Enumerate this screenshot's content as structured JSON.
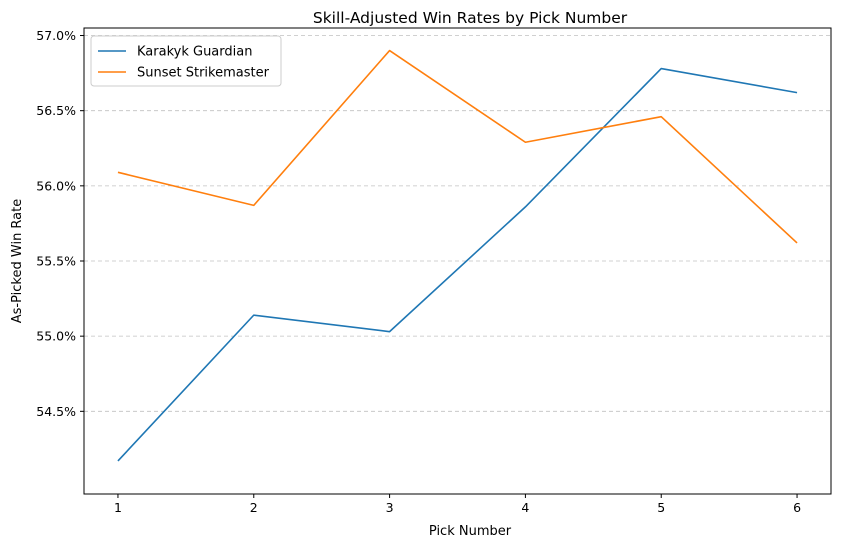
{
  "chart_data": {
    "type": "line",
    "title": "Skill-Adjusted Win Rates by Pick Number",
    "xlabel": "Pick Number",
    "ylabel": "As-Picked Win Rate",
    "x": [
      1,
      2,
      3,
      4,
      5,
      6
    ],
    "x_ticks": [
      "1",
      "2",
      "3",
      "4",
      "5",
      "6"
    ],
    "y_ticks": [
      "54.5%",
      "55.0%",
      "55.5%",
      "56.0%",
      "56.5%",
      "57.0%"
    ],
    "y_tick_values": [
      54.5,
      55.0,
      55.5,
      56.0,
      56.5,
      57.0
    ],
    "ylim": [
      53.95,
      57.05
    ],
    "xlim": [
      0.75,
      6.25
    ],
    "grid": "y-dashed",
    "legend_position": "top-left",
    "series": [
      {
        "name": "Karakyk Guardian",
        "color": "#1f77b4",
        "values": [
          54.17,
          55.14,
          55.03,
          55.86,
          56.78,
          56.62
        ]
      },
      {
        "name": "Sunset Strikemaster",
        "color": "#ff7f0e",
        "values": [
          56.09,
          55.87,
          56.9,
          56.29,
          56.46,
          55.62
        ]
      }
    ]
  }
}
